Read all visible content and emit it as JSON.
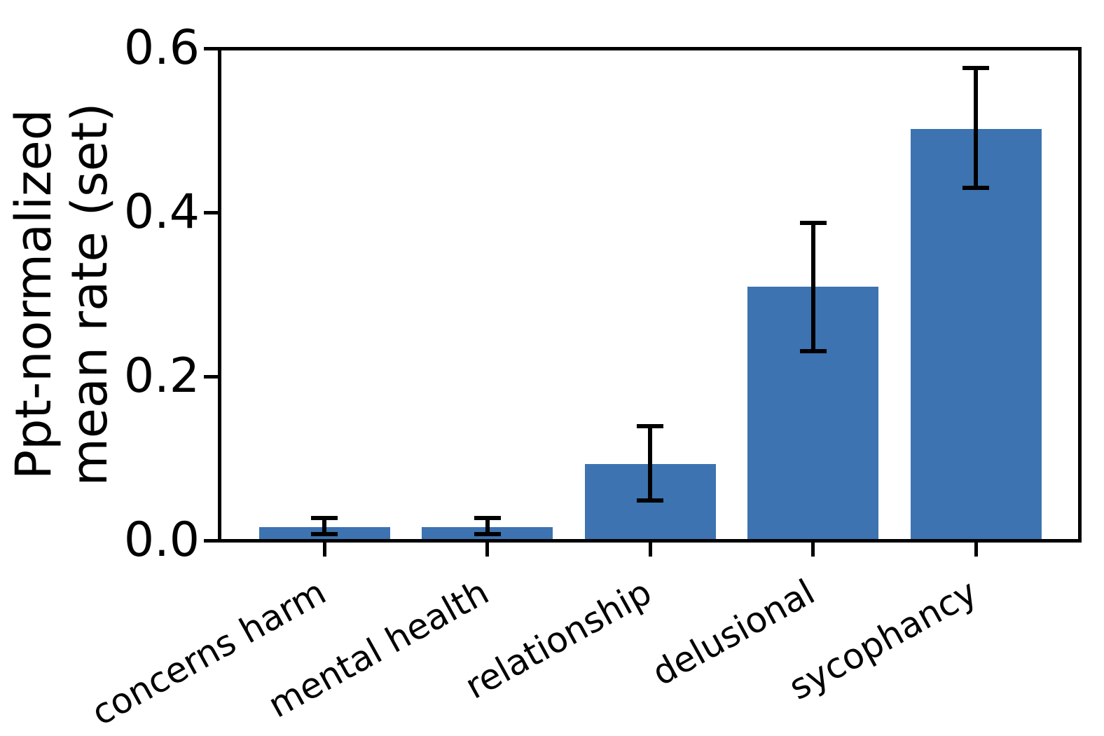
{
  "figure": {
    "background": "#ffffff",
    "bar_color": "#3d73b0",
    "axis_color": "#000000",
    "error_bar_color": "#000000"
  },
  "chart_data": {
    "type": "bar",
    "title": "",
    "xlabel": "",
    "ylabel_lines": [
      "Ppt-normalized",
      "mean rate (set)"
    ],
    "categories": [
      "concerns harm",
      "mental health",
      "relationship",
      "delusional",
      "sycophancy"
    ],
    "values": [
      0.016,
      0.016,
      0.093,
      0.309,
      0.502
    ],
    "error_low": [
      0.008,
      0.008,
      0.049,
      0.231,
      0.43
    ],
    "error_high": [
      0.027,
      0.027,
      0.139,
      0.387,
      0.576
    ],
    "ylim": [
      0,
      0.6
    ],
    "ytick_values": [
      0.0,
      0.2,
      0.4,
      0.6
    ],
    "ytick_labels": [
      "0.0",
      "0.2",
      "0.4",
      "0.6"
    ],
    "bar_width_fraction": 0.8,
    "xtick_rotation_deg": 29,
    "grid": false,
    "legend": null
  }
}
